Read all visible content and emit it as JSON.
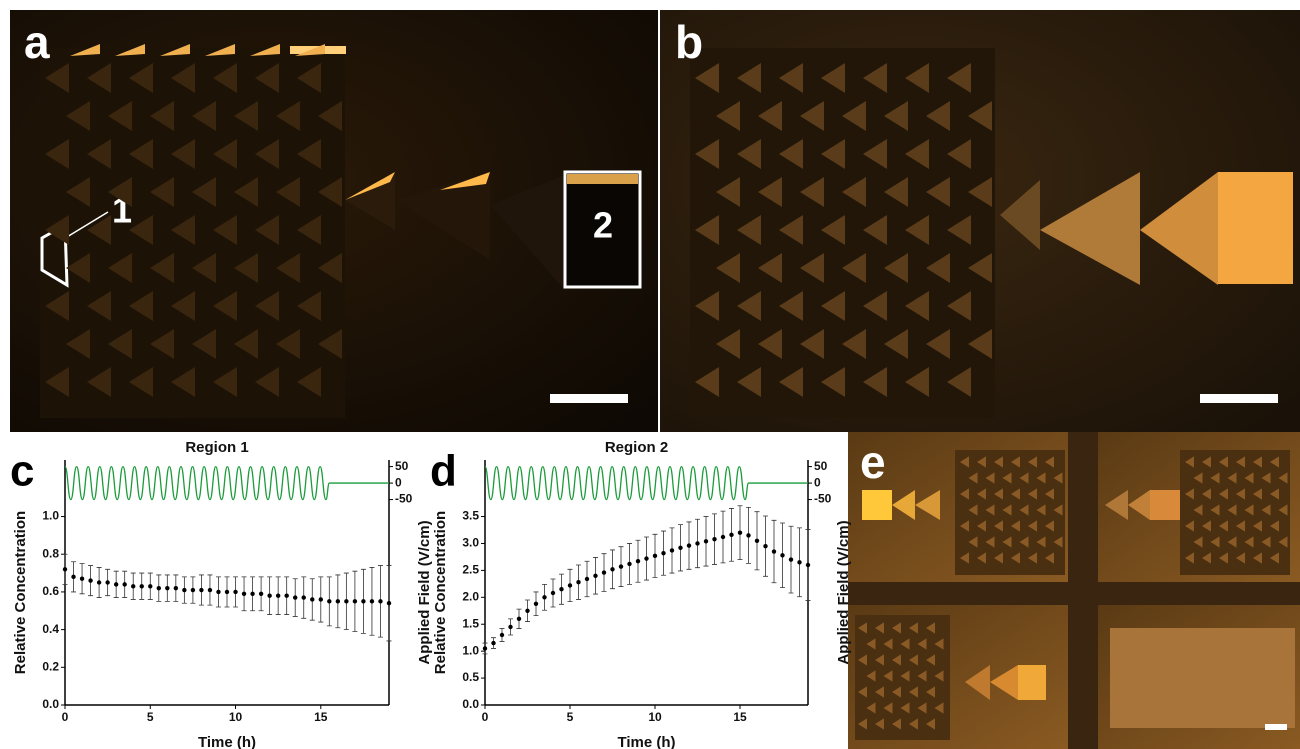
{
  "panels": {
    "a": {
      "label": "a",
      "region_1": "1",
      "region_2": "2"
    },
    "b": {
      "label": "b"
    },
    "e": {
      "label": "e"
    }
  },
  "chart_data": [
    {
      "type": "scatter",
      "panel_label": "c",
      "title": "Region 1",
      "xlabel": "Time (h)",
      "ylabel": "Relative Concentration",
      "y2label": "Applied Field (V/cm)",
      "xlim": [
        0,
        19
      ],
      "xticks": [
        0,
        5,
        10,
        15
      ],
      "ylim": [
        0,
        1.3
      ],
      "yticks": [
        {
          "value": 0,
          "label": "0.0"
        },
        0.2,
        0.4,
        0.6,
        0.8,
        {
          "value": 1,
          "label": "1.0"
        }
      ],
      "y2lim": [
        -673,
        70
      ],
      "y2ticks": [
        50,
        0,
        -50
      ],
      "series": [
        {
          "color": "#000000",
          "x": [
            0,
            0.5,
            1,
            1.5,
            2,
            2.5,
            3,
            3.5,
            4,
            4.5,
            5,
            5.5,
            6,
            6.5,
            7,
            7.5,
            8,
            8.5,
            9,
            9.5,
            10,
            10.5,
            11,
            11.5,
            12,
            12.5,
            13,
            13.5,
            14,
            14.5,
            15,
            15.5,
            16,
            16.5,
            17,
            17.5,
            18,
            18.5,
            19
          ],
          "values": [
            0.72,
            0.68,
            0.67,
            0.66,
            0.65,
            0.65,
            0.64,
            0.64,
            0.63,
            0.63,
            0.63,
            0.62,
            0.62,
            0.62,
            0.61,
            0.61,
            0.61,
            0.61,
            0.6,
            0.6,
            0.6,
            0.59,
            0.59,
            0.59,
            0.58,
            0.58,
            0.58,
            0.57,
            0.57,
            0.56,
            0.56,
            0.55,
            0.55,
            0.55,
            0.55,
            0.55,
            0.55,
            0.55,
            0.54
          ],
          "errors": [
            0.08,
            0.08,
            0.08,
            0.08,
            0.08,
            0.07,
            0.07,
            0.07,
            0.07,
            0.07,
            0.07,
            0.07,
            0.07,
            0.07,
            0.07,
            0.07,
            0.08,
            0.08,
            0.08,
            0.08,
            0.08,
            0.09,
            0.09,
            0.09,
            0.1,
            0.1,
            0.1,
            0.1,
            0.11,
            0.11,
            0.12,
            0.13,
            0.14,
            0.15,
            0.16,
            0.17,
            0.18,
            0.19,
            0.2
          ]
        },
        {
          "type": "line",
          "axis": "y2",
          "color": "#1a9c3a",
          "x": [
            0,
            0.34,
            0.68,
            1.02,
            1.36,
            1.7,
            2.04,
            2.38,
            2.72,
            3.06,
            3.4,
            3.74,
            4.08,
            4.42,
            4.76,
            5.1,
            5.44,
            5.78,
            6.12,
            6.46,
            6.8,
            7.14,
            7.48,
            7.82,
            8.16,
            8.5,
            8.84,
            9.18,
            9.52,
            9.86,
            10.2,
            10.54,
            10.88,
            11.22,
            11.56,
            11.9,
            12.24,
            12.58,
            12.92,
            13.26,
            13.6,
            13.94,
            14.28,
            14.62,
            14.96,
            15.3,
            15.5,
            19
          ],
          "values": [
            50,
            -50,
            50,
            -50,
            50,
            -50,
            50,
            -50,
            50,
            -50,
            50,
            -50,
            50,
            -50,
            50,
            -50,
            50,
            -50,
            50,
            -50,
            50,
            -50,
            50,
            -50,
            50,
            -50,
            50,
            -50,
            50,
            -50,
            50,
            -50,
            50,
            -50,
            50,
            -50,
            50,
            -50,
            50,
            -50,
            50,
            -50,
            50,
            -50,
            50,
            -50,
            0,
            0
          ]
        }
      ]
    },
    {
      "type": "scatter",
      "panel_label": "d",
      "title": "Region 2",
      "xlabel": "Time (h)",
      "ylabel": "Relative Concentration",
      "y2label": "Applied Field (V/cm)",
      "xlim": [
        0,
        19
      ],
      "xticks": [
        0,
        5,
        10,
        15
      ],
      "ylim": [
        0,
        4.55
      ],
      "yticks": [
        {
          "value": 0,
          "label": "0.0"
        },
        0.5,
        {
          "value": 1,
          "label": "1.0"
        },
        1.5,
        {
          "value": 2,
          "label": "2.0"
        },
        2.5,
        {
          "value": 3,
          "label": "3.0"
        },
        3.5
      ],
      "y2lim": [
        -673,
        70
      ],
      "y2ticks": [
        50,
        0,
        -50
      ],
      "series": [
        {
          "color": "#000000",
          "x": [
            0,
            0.5,
            1,
            1.5,
            2,
            2.5,
            3,
            3.5,
            4,
            4.5,
            5,
            5.5,
            6,
            6.5,
            7,
            7.5,
            8,
            8.5,
            9,
            9.5,
            10,
            10.5,
            11,
            11.5,
            12,
            12.5,
            13,
            13.5,
            14,
            14.5,
            15,
            15.5,
            16,
            16.5,
            17,
            17.5,
            18,
            18.5,
            19
          ],
          "values": [
            1.05,
            1.15,
            1.3,
            1.45,
            1.6,
            1.75,
            1.88,
            2.0,
            2.08,
            2.15,
            2.22,
            2.28,
            2.34,
            2.4,
            2.46,
            2.52,
            2.57,
            2.62,
            2.67,
            2.72,
            2.77,
            2.82,
            2.87,
            2.92,
            2.96,
            3.0,
            3.04,
            3.08,
            3.12,
            3.16,
            3.2,
            3.15,
            3.05,
            2.95,
            2.85,
            2.78,
            2.7,
            2.65,
            2.6
          ],
          "errors": [
            0.1,
            0.1,
            0.12,
            0.15,
            0.18,
            0.2,
            0.22,
            0.24,
            0.26,
            0.28,
            0.3,
            0.32,
            0.33,
            0.34,
            0.35,
            0.36,
            0.37,
            0.38,
            0.39,
            0.4,
            0.4,
            0.41,
            0.42,
            0.43,
            0.44,
            0.45,
            0.46,
            0.47,
            0.48,
            0.49,
            0.5,
            0.52,
            0.54,
            0.56,
            0.58,
            0.6,
            0.62,
            0.64,
            0.66
          ]
        },
        {
          "type": "line",
          "axis": "y2",
          "color": "#1a9c3a",
          "x": [
            0,
            0.34,
            0.68,
            1.02,
            1.36,
            1.7,
            2.04,
            2.38,
            2.72,
            3.06,
            3.4,
            3.74,
            4.08,
            4.42,
            4.76,
            5.1,
            5.44,
            5.78,
            6.12,
            6.46,
            6.8,
            7.14,
            7.48,
            7.82,
            8.16,
            8.5,
            8.84,
            9.18,
            9.52,
            9.86,
            10.2,
            10.54,
            10.88,
            11.22,
            11.56,
            11.9,
            12.24,
            12.58,
            12.92,
            13.26,
            13.6,
            13.94,
            14.28,
            14.62,
            14.96,
            15.3,
            15.5,
            19
          ],
          "values": [
            50,
            -50,
            50,
            -50,
            50,
            -50,
            50,
            -50,
            50,
            -50,
            50,
            -50,
            50,
            -50,
            50,
            -50,
            50,
            -50,
            50,
            -50,
            50,
            -50,
            50,
            -50,
            50,
            -50,
            50,
            -50,
            50,
            -50,
            50,
            -50,
            50,
            -50,
            50,
            -50,
            50,
            -50,
            50,
            -50,
            50,
            -50,
            50,
            -50,
            50,
            -50,
            0,
            0
          ]
        }
      ]
    }
  ]
}
